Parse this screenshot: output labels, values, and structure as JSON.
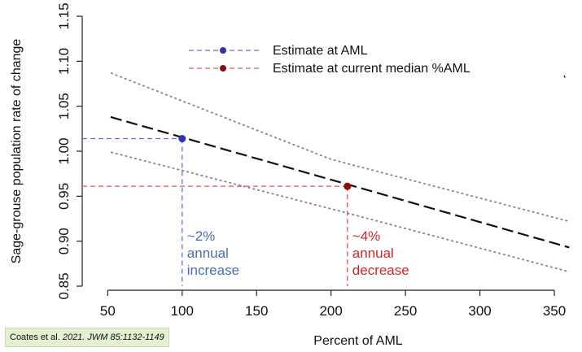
{
  "chart_data": {
    "type": "line",
    "xlabel": "Percent of AML",
    "ylabel": "Sage-grouse population rate of change",
    "xlim": [
      50,
      360
    ],
    "ylim": [
      0.85,
      1.15
    ],
    "xticks": [
      "50",
      "100",
      "150",
      "200",
      "250",
      "300",
      "350"
    ],
    "yticks": [
      "0.85",
      "0.90",
      "0.95",
      "1.00",
      "1.05",
      "1.10",
      "1.15"
    ],
    "series": [
      {
        "role": "estimate",
        "style": "dashed-black",
        "x": [
          52,
          360
        ],
        "y": [
          1.038,
          0.893
        ]
      },
      {
        "role": "upper-bound",
        "style": "dotted-gray",
        "x": [
          52,
          200,
          360
        ],
        "y": [
          1.087,
          0.991,
          0.922
        ]
      },
      {
        "role": "lower-bound",
        "style": "dotted-gray",
        "x": [
          52,
          200,
          360
        ],
        "y": [
          0.999,
          0.936,
          0.866
        ]
      }
    ],
    "legend": {
      "position": "top-center",
      "entries": [
        {
          "label": "Estimate at AML",
          "color": "#2f30b5",
          "line_color": "#6a6ad8"
        },
        {
          "label": "Estimate at current median %AML",
          "color": "#8b0c0c",
          "line_color": "#d9585c"
        }
      ]
    },
    "points": [
      {
        "label": "Estimate at AML",
        "x": 100,
        "y": 1.014,
        "color": "#2f30b5",
        "guide_color": "#6a6ad8"
      },
      {
        "label": "Estimate at current median %AML",
        "x": 211,
        "y": 0.961,
        "color": "#8b0c0c",
        "guide_color": "#d9585c"
      }
    ],
    "annotations": [
      {
        "lines": [
          "~2%",
          "annual",
          "increase"
        ],
        "color": "#4a6db8",
        "x": 100
      },
      {
        "lines": [
          "~4%",
          "annual",
          "decrease"
        ],
        "color": "#d3262b",
        "x": 211
      }
    ],
    "grid": false
  },
  "citation": {
    "authors": "Coates et al. ",
    "journal": "2021. JWM 85:1132-1149"
  },
  "stray_mark": "˛"
}
